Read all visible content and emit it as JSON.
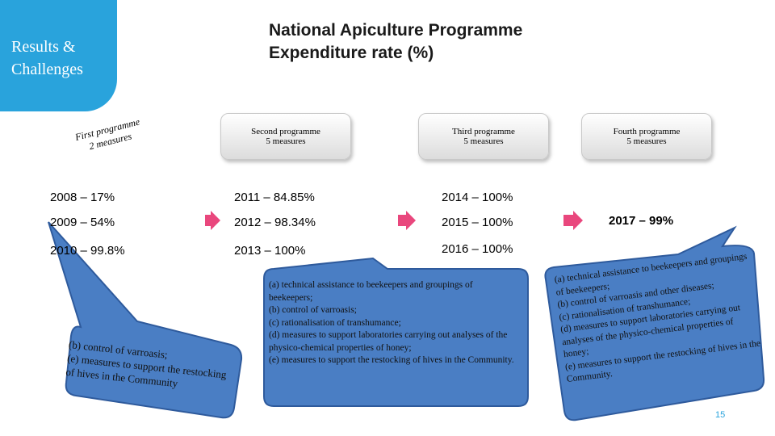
{
  "sidebar": {
    "title": "Results &\nChallenges"
  },
  "header": {
    "title": "National Apiculture Programme\nExpenditure rate (%)"
  },
  "programmes": [
    {
      "title": "First programme",
      "subtitle": "2 measures"
    },
    {
      "title": "Second programme",
      "subtitle": "5 measures"
    },
    {
      "title": "Third programme",
      "subtitle": "5 measures"
    },
    {
      "title": "Fourth programme",
      "subtitle": "5 measures"
    }
  ],
  "rates": {
    "first": [
      "2008 – 17%",
      "2009 – 54%",
      "2010 – 99.8%"
    ],
    "second": [
      "2011 – 84.85%",
      "2012 – 98.34%",
      "2013 – 100%"
    ],
    "third": [
      "2014 – 100%",
      "2015 – 100%",
      "2016 – 100%"
    ],
    "fourth": [
      "2017 – 99%"
    ]
  },
  "callouts": {
    "first": "(b) control of varroasis;\n(e) measures to support the restocking of hives in the Community",
    "third": "(a) technical assistance to beekeepers and groupings of beekeepers;\n(b) control of varroasis;\n(c) rationalisation of transhumance;\n(d) measures to support laboratories carrying out analyses of the physico-chemical properties of honey;\n(e) measures to support the restocking of hives in the Community.",
    "fourth": "(a) technical assistance to beekeepers and groupings of beekeepers;\n(b) control of varroasis and other diseases;\n(c) rationalisation of transhumance;\n(d) measures to support laboratories carrying out analyses of the physico-chemical properties of honey;\n(e) measures to support the restocking of hives in the Community."
  },
  "footer": {
    "page_number": "15"
  },
  "colors": {
    "accent": "#29a3dc",
    "bubble": "#4a7ec4",
    "bubble_border": "#2e5a9c",
    "arrow": "#e9477d"
  }
}
